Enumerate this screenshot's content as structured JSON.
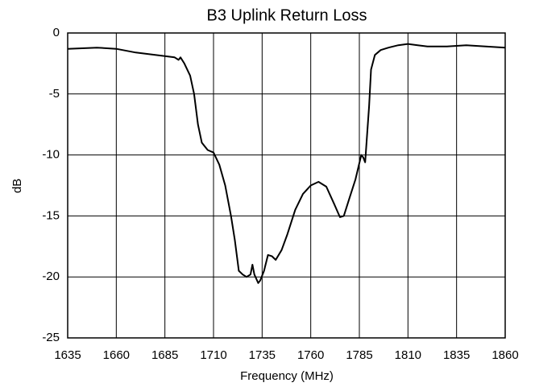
{
  "chart_data": {
    "type": "line",
    "title": "B3 Uplink Return Loss",
    "x_label": "Frequency (MHz)",
    "y_label": "dB",
    "x": [
      1635,
      1650,
      1660,
      1670,
      1680,
      1685,
      1690,
      1692,
      1693,
      1695,
      1698,
      1700,
      1702,
      1704,
      1707,
      1710,
      1713,
      1716,
      1719,
      1721,
      1723,
      1725,
      1727,
      1729,
      1730,
      1731,
      1733,
      1734,
      1736,
      1738,
      1740,
      1742,
      1745,
      1748,
      1752,
      1756,
      1760,
      1764,
      1768,
      1772,
      1775,
      1777,
      1780,
      1783,
      1786,
      1787,
      1788,
      1790,
      1791,
      1793,
      1796,
      1800,
      1805,
      1810,
      1815,
      1820,
      1830,
      1840,
      1850,
      1860
    ],
    "values": [
      -1.3,
      -1.2,
      -1.3,
      -1.6,
      -1.8,
      -1.9,
      -2.0,
      -2.2,
      -2.0,
      -2.5,
      -3.5,
      -5,
      -7.5,
      -9,
      -9.6,
      -9.8,
      -10.8,
      -12.5,
      -15,
      -17,
      -19.5,
      -19.8,
      -20,
      -19.8,
      -19.0,
      -19.8,
      -20.5,
      -20.3,
      -19.5,
      -18.2,
      -18.3,
      -18.6,
      -17.8,
      -16.5,
      -14.5,
      -13.2,
      -12.5,
      -12.2,
      -12.6,
      -14,
      -15.1,
      -15.0,
      -13.5,
      -12,
      -10.0,
      -10.2,
      -10.6,
      -6,
      -3,
      -1.8,
      -1.4,
      -1.2,
      -1.0,
      -0.9,
      -1.0,
      -1.1,
      -1.1,
      -1.0,
      -1.1,
      -1.2
    ],
    "color": "#000000",
    "xlim": [
      1635,
      1860
    ],
    "xticks": [
      1635,
      1660,
      1685,
      1710,
      1735,
      1760,
      1785,
      1810,
      1835,
      1860
    ],
    "ylim": [
      -25,
      0
    ],
    "yticks": [
      -25,
      -20,
      -15,
      -10,
      -5,
      0
    ],
    "grid": true
  }
}
